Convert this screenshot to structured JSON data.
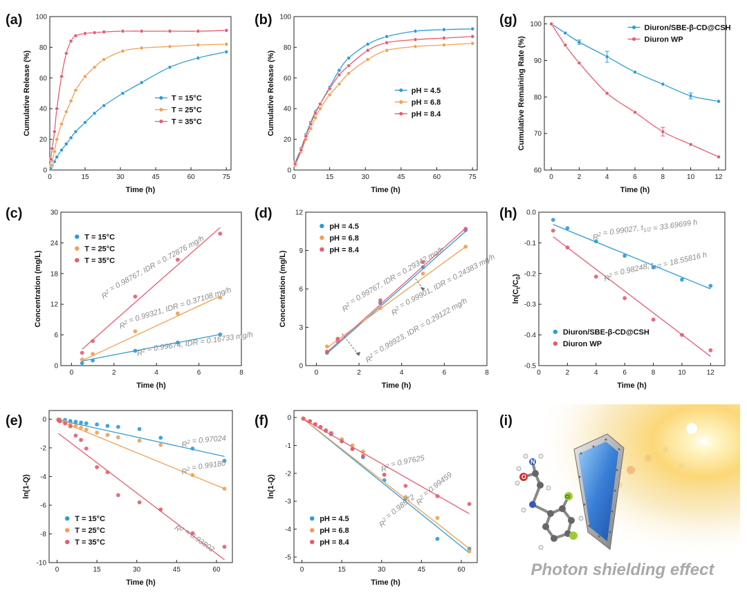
{
  "colors": {
    "blue": "#2e9bd6",
    "orange": "#f0a054",
    "red": "#e85b6e",
    "gray": "#8a8a8a"
  },
  "chart_data": [
    {
      "id": "a",
      "label": "(a)",
      "type": "line",
      "xlabel": "Time (h)",
      "ylabel": "Cumulative Release (%)",
      "xlim": [
        0,
        77
      ],
      "ylim": [
        0,
        100
      ],
      "xticks": [
        "0",
        "15",
        "30",
        "45",
        "60",
        "75"
      ],
      "yticks": [
        "0",
        "20",
        "40",
        "60",
        "80",
        "100"
      ],
      "legend": "center-right",
      "series": [
        {
          "name": "T = 15°C",
          "color": "blue",
          "x": [
            0.5,
            1,
            2,
            3,
            5,
            7,
            9,
            11,
            15,
            19,
            23,
            31,
            39,
            51,
            63,
            75
          ],
          "y": [
            1.5,
            3,
            5.5,
            8.5,
            13,
            17,
            21,
            25,
            31,
            37,
            42,
            50,
            57,
            67,
            73,
            77
          ]
        },
        {
          "name": "T = 25°C",
          "color": "orange",
          "x": [
            0.5,
            1,
            2,
            3,
            5,
            7,
            9,
            11,
            15,
            19,
            23,
            31,
            39,
            51,
            63,
            75
          ],
          "y": [
            3,
            6,
            12,
            20,
            30,
            38,
            45,
            52,
            61,
            67,
            72,
            77.5,
            79.5,
            80.5,
            81.5,
            82
          ]
        },
        {
          "name": "T = 35°C",
          "color": "red",
          "x": [
            0.5,
            1,
            2,
            3,
            5,
            7,
            9,
            11,
            15,
            19,
            23,
            31,
            39,
            51,
            63,
            75
          ],
          "y": [
            7,
            14,
            25,
            40,
            61,
            76,
            84,
            87.5,
            89,
            89.5,
            90,
            90.5,
            90.5,
            90.5,
            90.5,
            91
          ]
        }
      ]
    },
    {
      "id": "b",
      "label": "(b)",
      "type": "line",
      "xlabel": "Time (h)",
      "ylabel": "Cumulative Release (%)",
      "xlim": [
        0,
        77
      ],
      "ylim": [
        0,
        100
      ],
      "xticks": [
        "0",
        "15",
        "30",
        "45",
        "60",
        "75"
      ],
      "yticks": [
        "0",
        "20",
        "40",
        "60",
        "80",
        "100"
      ],
      "legend": "center-right",
      "series": [
        {
          "name": "pH = 4.5",
          "color": "blue",
          "x": [
            0.5,
            3,
            5,
            7,
            9,
            11,
            15,
            19,
            23,
            31,
            39,
            51,
            63,
            75
          ],
          "y": [
            5,
            14,
            23,
            31,
            38,
            43,
            54,
            65,
            73,
            82,
            87,
            90.5,
            91.5,
            92
          ]
        },
        {
          "name": "pH = 6.8",
          "color": "orange",
          "x": [
            0.5,
            3,
            5,
            7,
            9,
            11,
            15,
            19,
            23,
            31,
            39,
            51,
            63,
            75
          ],
          "y": [
            3,
            12,
            20,
            27,
            34,
            40,
            49,
            56,
            63,
            72,
            78,
            80.5,
            81.5,
            82.5
          ]
        },
        {
          "name": "pH = 8.4",
          "color": "red",
          "x": [
            0.5,
            3,
            5,
            7,
            9,
            11,
            15,
            19,
            23,
            31,
            39,
            51,
            63,
            75
          ],
          "y": [
            4,
            13,
            22,
            30,
            37,
            43,
            53,
            62,
            68,
            78,
            83,
            85,
            86,
            87
          ]
        }
      ]
    },
    {
      "id": "g",
      "label": "(g)",
      "type": "line",
      "xlabel": "Time (h)",
      "ylabel": "Cumulative Remaining Rate (%)",
      "xlim": [
        -0.5,
        12.5
      ],
      "ylim": [
        60,
        102
      ],
      "xticks": [
        "0",
        "2",
        "4",
        "6",
        "8",
        "10",
        "12"
      ],
      "yticks": [
        "60",
        "70",
        "80",
        "90",
        "100"
      ],
      "legend": "top-right",
      "series": [
        {
          "name": "Diuron/SBE-β-CD@CSH",
          "color": "blue",
          "x": [
            0,
            1,
            2,
            4,
            6,
            8,
            10,
            12
          ],
          "y": [
            100,
            97.5,
            95,
            91,
            86.8,
            83.5,
            80.3,
            78.8
          ]
        },
        {
          "name": "Diuron WP",
          "color": "red",
          "x": [
            0,
            1,
            2,
            4,
            6,
            8,
            10,
            12
          ],
          "y": [
            100,
            94.2,
            89.3,
            81,
            75.8,
            70.5,
            67,
            63.6
          ]
        }
      ]
    },
    {
      "id": "c",
      "label": "(c)",
      "type": "scatter",
      "xlabel": "Time (h)",
      "ylabel": "Concentration (mg/L)",
      "xlim": [
        -0.5,
        8
      ],
      "ylim": [
        0,
        30
      ],
      "xticks": [
        "0",
        "2",
        "4",
        "6",
        "8"
      ],
      "yticks": [
        "0",
        "6",
        "12",
        "18",
        "24",
        "30"
      ],
      "legend": "top-left",
      "series": [
        {
          "name": "T = 15°C",
          "color": "blue",
          "x": [
            0.5,
            1,
            3,
            5,
            7
          ],
          "y": [
            0.5,
            1,
            2.9,
            4.5,
            6.1
          ],
          "fit": [
            [
              0.5,
              0.9
            ],
            [
              7,
              6.1
            ]
          ]
        },
        {
          "name": "T = 25°C",
          "color": "orange",
          "x": [
            0.5,
            1,
            3,
            5,
            7
          ],
          "y": [
            1.2,
            2.3,
            6.7,
            10.2,
            13.3
          ],
          "fit": [
            [
              0.5,
              1.0
            ],
            [
              7,
              13.6
            ]
          ]
        },
        {
          "name": "T = 35°C",
          "color": "red",
          "x": [
            0.5,
            1,
            3,
            5,
            7
          ],
          "y": [
            2.5,
            4.8,
            13.5,
            20.7,
            25.8
          ],
          "fit": [
            [
              0.5,
              3.2
            ],
            [
              7,
              27
            ]
          ]
        }
      ],
      "annotations": [
        "R² = 0.98767, IDR = 0.72876 mg/h",
        "R² = 0.99321, IDR = 0.37108 mg/h",
        "R² = 0.99674, IDR = 0.16733 mg/h"
      ]
    },
    {
      "id": "d",
      "label": "(d)",
      "type": "scatter",
      "xlabel": "Time (h)",
      "ylabel": "Concentration (mg/L)",
      "xlim": [
        -0.5,
        8
      ],
      "ylim": [
        0,
        12
      ],
      "xticks": [
        "0",
        "2",
        "4",
        "6",
        "8"
      ],
      "yticks": [
        "0",
        "3",
        "6",
        "9",
        "12"
      ],
      "legend": "top-left",
      "series": [
        {
          "name": "pH = 4.5",
          "color": "blue",
          "x": [
            0.5,
            1,
            3,
            5,
            7
          ],
          "y": [
            1.0,
            1.9,
            4.9,
            7.7,
            10.6
          ],
          "fit": [
            [
              0.5,
              0.95
            ],
            [
              7,
              10.5
            ]
          ]
        },
        {
          "name": "pH = 6.8",
          "color": "orange",
          "x": [
            0.5,
            1,
            3,
            5,
            7
          ],
          "y": [
            1.5,
            2.0,
            4.5,
            7.2,
            9.3
          ],
          "fit": [
            [
              0.5,
              1.4
            ],
            [
              7,
              9.3
            ]
          ]
        },
        {
          "name": "pH = 8.4",
          "color": "red",
          "x": [
            0.5,
            1,
            3,
            5,
            7
          ],
          "y": [
            1.1,
            2.1,
            5.1,
            8.1,
            10.7
          ],
          "fit": [
            [
              0.5,
              1.05
            ],
            [
              7,
              10.75
            ]
          ]
        }
      ],
      "annotations": [
        "R² = 0.99767, IDR = 0.29342 mg/h",
        "R² = 0.99901, IDR = 0.24383 mg/h",
        "R² = 0.99923, IDR = 0.29122 mg/h"
      ]
    },
    {
      "id": "h",
      "label": "(h)",
      "type": "scatter",
      "xlabel": "Time (h)",
      "ylabel": "ln(Ct/C0)",
      "xlim": [
        0,
        13
      ],
      "ylim": [
        -0.5,
        0
      ],
      "xticks": [
        "0",
        "2",
        "4",
        "6",
        "8",
        "10",
        "12"
      ],
      "yticks": [
        "0.0",
        "-0.1",
        "-0.2",
        "-0.3",
        "-0.4",
        "-0.5"
      ],
      "legend": "bottom-left",
      "series": [
        {
          "name": "Diuron/SBE-β-CD@CSH",
          "color": "blue",
          "x": [
            1,
            2,
            4,
            6,
            8,
            10,
            12
          ],
          "y": [
            -0.025,
            -0.052,
            -0.095,
            -0.142,
            -0.18,
            -0.22,
            -0.24
          ],
          "fit": [
            [
              1,
              -0.04
            ],
            [
              12,
              -0.25
            ]
          ]
        },
        {
          "name": "Diuron WP",
          "color": "red",
          "x": [
            1,
            2,
            4,
            6,
            8,
            10,
            12
          ],
          "y": [
            -0.06,
            -0.115,
            -0.21,
            -0.28,
            -0.35,
            -0.4,
            -0.45
          ],
          "fit": [
            [
              1,
              -0.08
            ],
            [
              12,
              -0.47
            ]
          ]
        }
      ],
      "annotations": [
        "R² = 0.99027, t1/2 = 33.69699 h",
        "R² = 0.98248, t1/2 = 18.55816 h"
      ]
    },
    {
      "id": "e",
      "label": "(e)",
      "type": "scatter",
      "xlabel": "Time (h)",
      "ylabel": "ln(1-Q)",
      "xlim": [
        -3,
        66
      ],
      "ylim": [
        -10,
        0.6
      ],
      "xticks": [
        "0",
        "15",
        "30",
        "45",
        "60"
      ],
      "yticks": [
        "0",
        "-2",
        "-4",
        "-6",
        "-8",
        "-10"
      ],
      "legend": "bottom-left",
      "series": [
        {
          "name": "T = 15°C",
          "color": "blue",
          "x": [
            0.5,
            1,
            3,
            5,
            7,
            9,
            11,
            15,
            19,
            23,
            31,
            39,
            51,
            63
          ],
          "y": [
            -0.02,
            -0.03,
            -0.05,
            -0.13,
            -0.18,
            -0.24,
            -0.29,
            -0.37,
            -0.47,
            -0.54,
            -0.69,
            -1.3,
            -2.05,
            -2.9
          ],
          "fit": [
            [
              0.5,
              -0.05
            ],
            [
              63,
              -2.6
            ]
          ]
        },
        {
          "name": "T = 25°C",
          "color": "orange",
          "x": [
            0.5,
            1,
            3,
            5,
            7,
            9,
            11,
            15,
            19,
            23,
            31,
            39,
            51,
            63
          ],
          "y": [
            -0.03,
            -0.06,
            -0.2,
            -0.36,
            -0.48,
            -0.6,
            -0.73,
            -0.94,
            -1.1,
            -1.27,
            -1.5,
            -1.8,
            -3.9,
            -4.85
          ],
          "fit": [
            [
              0.5,
              -0.1
            ],
            [
              63,
              -4.85
            ]
          ]
        },
        {
          "name": "T = 35°C",
          "color": "red",
          "x": [
            0.5,
            1,
            3,
            5,
            7,
            9,
            11,
            15,
            19,
            23,
            31,
            39,
            51,
            63
          ],
          "y": [
            -0.07,
            -0.15,
            -0.3,
            -0.5,
            -1.15,
            -1.45,
            -2.05,
            -3.35,
            -3.7,
            -5.3,
            -5.8,
            -6.3,
            -7.95,
            -8.9
          ],
          "fit": [
            [
              0.5,
              -1
            ],
            [
              63,
              -9.8
            ]
          ]
        }
      ],
      "annotations": [
        "R² = 0.97024",
        "R² = 0.99180",
        "R² = 0.93802"
      ]
    },
    {
      "id": "f",
      "label": "(f)",
      "type": "scatter",
      "xlabel": "Time (h)",
      "ylabel": "ln(1-Q)",
      "xlim": [
        -3,
        66
      ],
      "ylim": [
        -5.2,
        0.25
      ],
      "xticks": [
        "0",
        "15",
        "30",
        "45",
        "60"
      ],
      "yticks": [
        "0",
        "-1",
        "-2",
        "-3",
        "-4",
        "-5"
      ],
      "legend": "bottom-left",
      "series": [
        {
          "name": "pH = 4.5",
          "color": "blue",
          "x": [
            0.5,
            3,
            5,
            7,
            9,
            11,
            15,
            19,
            23,
            31,
            39,
            51,
            63
          ],
          "y": [
            -0.04,
            -0.13,
            -0.25,
            -0.35,
            -0.48,
            -0.6,
            -0.85,
            -1.13,
            -1.42,
            -2.25,
            -2.9,
            -4.35,
            -4.7
          ],
          "fit": [
            [
              0.5,
              -0.05
            ],
            [
              63,
              -4.85
            ]
          ]
        },
        {
          "name": "pH = 6.8",
          "color": "orange",
          "x": [
            0.5,
            3,
            5,
            7,
            9,
            11,
            15,
            19,
            23,
            31,
            39,
            51,
            63
          ],
          "y": [
            -0.03,
            -0.13,
            -0.24,
            -0.34,
            -0.46,
            -0.55,
            -0.78,
            -1.0,
            -1.22,
            -2.05,
            -2.85,
            -3.6,
            -4.8
          ],
          "fit": [
            [
              0.5,
              -0.05
            ],
            [
              63,
              -4.7
            ]
          ]
        },
        {
          "name": "pH = 8.4",
          "color": "red",
          "x": [
            0.5,
            3,
            5,
            7,
            9,
            11,
            15,
            19,
            23,
            31,
            39,
            51,
            63
          ],
          "y": [
            -0.04,
            -0.13,
            -0.24,
            -0.34,
            -0.46,
            -0.57,
            -0.85,
            -1.13,
            -1.38,
            -2.05,
            -2.45,
            -2.82,
            -3.1
          ],
          "fit": [
            [
              0.5,
              -0.05
            ],
            [
              63,
              -3.45
            ]
          ]
        }
      ],
      "annotations": [
        "R² = 0.97625",
        "R² = 0.98972",
        "R² = 0.99459"
      ]
    }
  ],
  "panel_i": {
    "label": "(i)",
    "caption": "Photon shielding effect",
    "molecule_labels": [
      "N",
      "O",
      "Cl"
    ]
  }
}
